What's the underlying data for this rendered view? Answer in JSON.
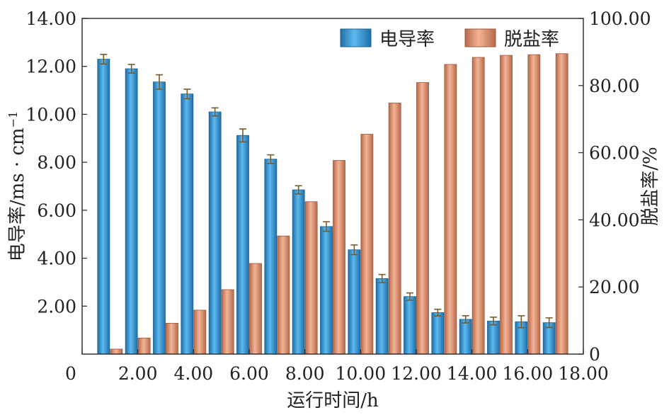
{
  "chart_data": {
    "type": "bar",
    "title": "",
    "xlabel": "运行时间/h",
    "ylabel_left": "电导率/ms · cm",
    "ylabel_left_sup": "−1",
    "ylabel_right": "脱盐率/%",
    "xlim": [
      0,
      18
    ],
    "ylim_left": [
      0,
      14
    ],
    "ylim_right": [
      0,
      100
    ],
    "x_ticks": [
      "0",
      "2.00",
      "4.00",
      "6.00",
      "8.00",
      "10.00",
      "12.00",
      "14.00",
      "16.00",
      "18.00"
    ],
    "y_left_ticks": [
      "2.00",
      "4.00",
      "6.00",
      "8.00",
      "10.00",
      "12.00",
      "14.00"
    ],
    "y_right_ticks": [
      "0",
      "20.00",
      "40.00",
      "60.00",
      "80.00",
      "100.00"
    ],
    "x": [
      1,
      2,
      3,
      4,
      5,
      6,
      7,
      8,
      9,
      10,
      11,
      12,
      13,
      14,
      15,
      16,
      17
    ],
    "legend_position": "top-right",
    "series": [
      {
        "name": "电导率",
        "axis": "left",
        "color": "#3a9fdc",
        "values": [
          12.3,
          11.9,
          11.35,
          10.85,
          10.1,
          9.12,
          8.13,
          6.85,
          5.32,
          4.35,
          3.15,
          2.4,
          1.73,
          1.45,
          1.38,
          1.35,
          1.31
        ],
        "errors": [
          0.2,
          0.18,
          0.3,
          0.2,
          0.17,
          0.27,
          0.18,
          0.17,
          0.2,
          0.2,
          0.17,
          0.15,
          0.14,
          0.15,
          0.16,
          0.25,
          0.2
        ]
      },
      {
        "name": "脱盐率",
        "axis": "right",
        "color": "#dd9270",
        "values": [
          1.5,
          4.8,
          9.2,
          13.1,
          19.2,
          27.0,
          35.2,
          45.4,
          57.7,
          65.5,
          74.8,
          80.9,
          86.3,
          88.4,
          89.0,
          89.2,
          89.5
        ]
      }
    ]
  }
}
